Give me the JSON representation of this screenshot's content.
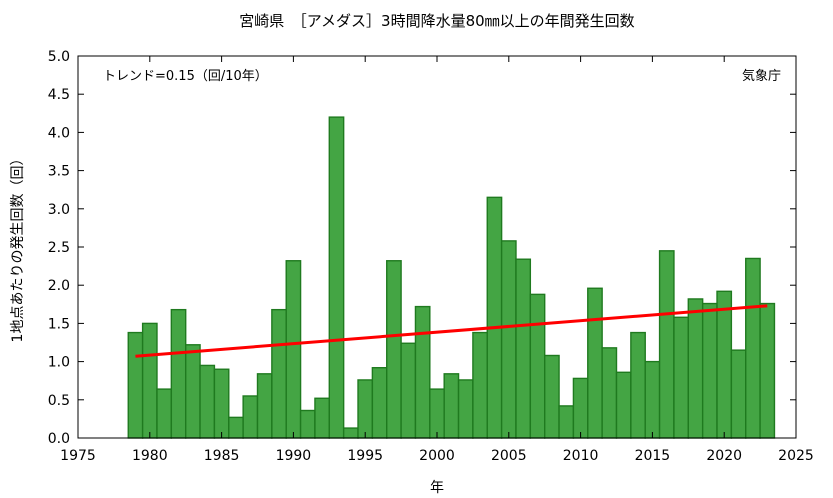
{
  "chart_data": {
    "type": "bar",
    "title": "宮崎県　［アメダス］3時間降水量80㎜以上の年間発生回数",
    "xlabel": "年",
    "ylabel": "1地点あたりの発生回数（回）",
    "trend_text": "トレンド=0.15（回/10年）",
    "source": "気象庁",
    "xlim": [
      1975,
      2025
    ],
    "ylim": [
      0,
      5.0
    ],
    "xticks": [
      "1975",
      "1980",
      "1985",
      "1990",
      "1995",
      "2000",
      "2005",
      "2010",
      "2015",
      "2020",
      "2025"
    ],
    "yticks": [
      "0.0",
      "0.5",
      "1.0",
      "1.5",
      "2.0",
      "2.5",
      "3.0",
      "3.5",
      "4.0",
      "4.5",
      "5.0"
    ],
    "grid": false,
    "bar_color": "#44a544",
    "bar_edge_color": "#1f7a1f",
    "trend_color": "#ff0000",
    "x": [
      1979,
      1980,
      1981,
      1982,
      1983,
      1984,
      1985,
      1986,
      1987,
      1988,
      1989,
      1990,
      1991,
      1992,
      1993,
      1994,
      1995,
      1996,
      1997,
      1998,
      1999,
      2000,
      2001,
      2002,
      2003,
      2004,
      2005,
      2006,
      2007,
      2008,
      2009,
      2010,
      2011,
      2012,
      2013,
      2014,
      2015,
      2016,
      2017,
      2018,
      2019,
      2020,
      2021,
      2022,
      2023
    ],
    "values": [
      1.38,
      1.5,
      0.64,
      1.68,
      1.22,
      0.95,
      0.9,
      0.27,
      0.55,
      0.84,
      1.68,
      2.32,
      0.36,
      0.52,
      4.2,
      0.13,
      0.76,
      0.92,
      2.32,
      1.24,
      1.72,
      0.64,
      0.84,
      0.76,
      1.38,
      3.15,
      2.58,
      2.34,
      1.88,
      1.08,
      0.42,
      0.78,
      1.96,
      1.18,
      0.86,
      1.38,
      1.0,
      2.45,
      1.58,
      1.82,
      1.76,
      1.92,
      1.15,
      2.35,
      1.76
    ],
    "trend_line": {
      "x": [
        1979,
        2023
      ],
      "y": [
        1.07,
        1.73
      ]
    }
  }
}
